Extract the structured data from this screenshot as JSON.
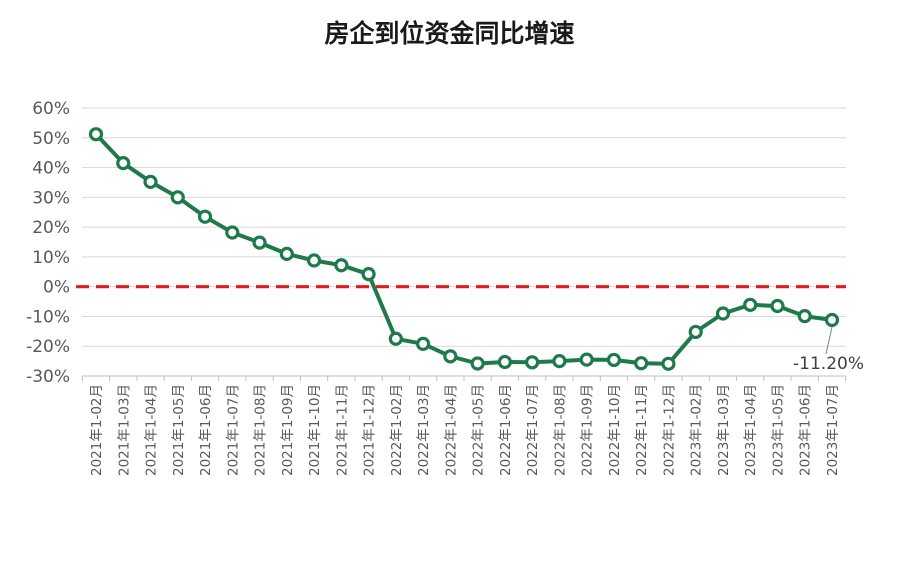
{
  "chart_data": {
    "type": "line",
    "title": "房企到位资金同比增速",
    "xlabel": "",
    "ylabel": "",
    "ylim": [
      -30,
      60
    ],
    "y_ticks": [
      "60%",
      "50%",
      "40%",
      "30%",
      "20%",
      "10%",
      "0%",
      "-10%",
      "-20%",
      "-30%"
    ],
    "y_tick_values": [
      60,
      50,
      40,
      30,
      20,
      10,
      0,
      -10,
      -20,
      -30
    ],
    "grid": true,
    "legend": "none",
    "reference_line": {
      "value": 0,
      "color": "#e8191b",
      "style": "dashed"
    },
    "line_color": "#1e7a4a",
    "categories": [
      "2021年1-02月",
      "2021年1-03月",
      "2021年1-04月",
      "2021年1-05月",
      "2021年1-06月",
      "2021年1-07月",
      "2021年1-08月",
      "2021年1-09月",
      "2021年1-10月",
      "2021年1-11月",
      "2021年1-12月",
      "2022年1-02月",
      "2022年1-03月",
      "2022年1-04月",
      "2022年1-05月",
      "2022年1-06月",
      "2022年1-07月",
      "2022年1-08月",
      "2022年1-09月",
      "2022年1-10月",
      "2022年1-11月",
      "2022年1-12月",
      "2023年1-02月",
      "2023年1-03月",
      "2023年1-04月",
      "2023年1-05月",
      "2023年1-06月",
      "2023年1-07月"
    ],
    "series": [
      {
        "values": [
          51.2,
          41.5,
          35.2,
          30.0,
          23.5,
          18.2,
          14.8,
          11.0,
          8.8,
          7.2,
          4.2,
          -17.5,
          -19.2,
          -23.4,
          -25.8,
          -25.3,
          -25.4,
          -25.0,
          -24.5,
          -24.6,
          -25.7,
          -25.9,
          -15.2,
          -9.0,
          -6.1,
          -6.5,
          -9.9,
          -11.2
        ]
      }
    ],
    "annotations": [
      {
        "index": 27,
        "text": "-11.20%"
      }
    ]
  }
}
